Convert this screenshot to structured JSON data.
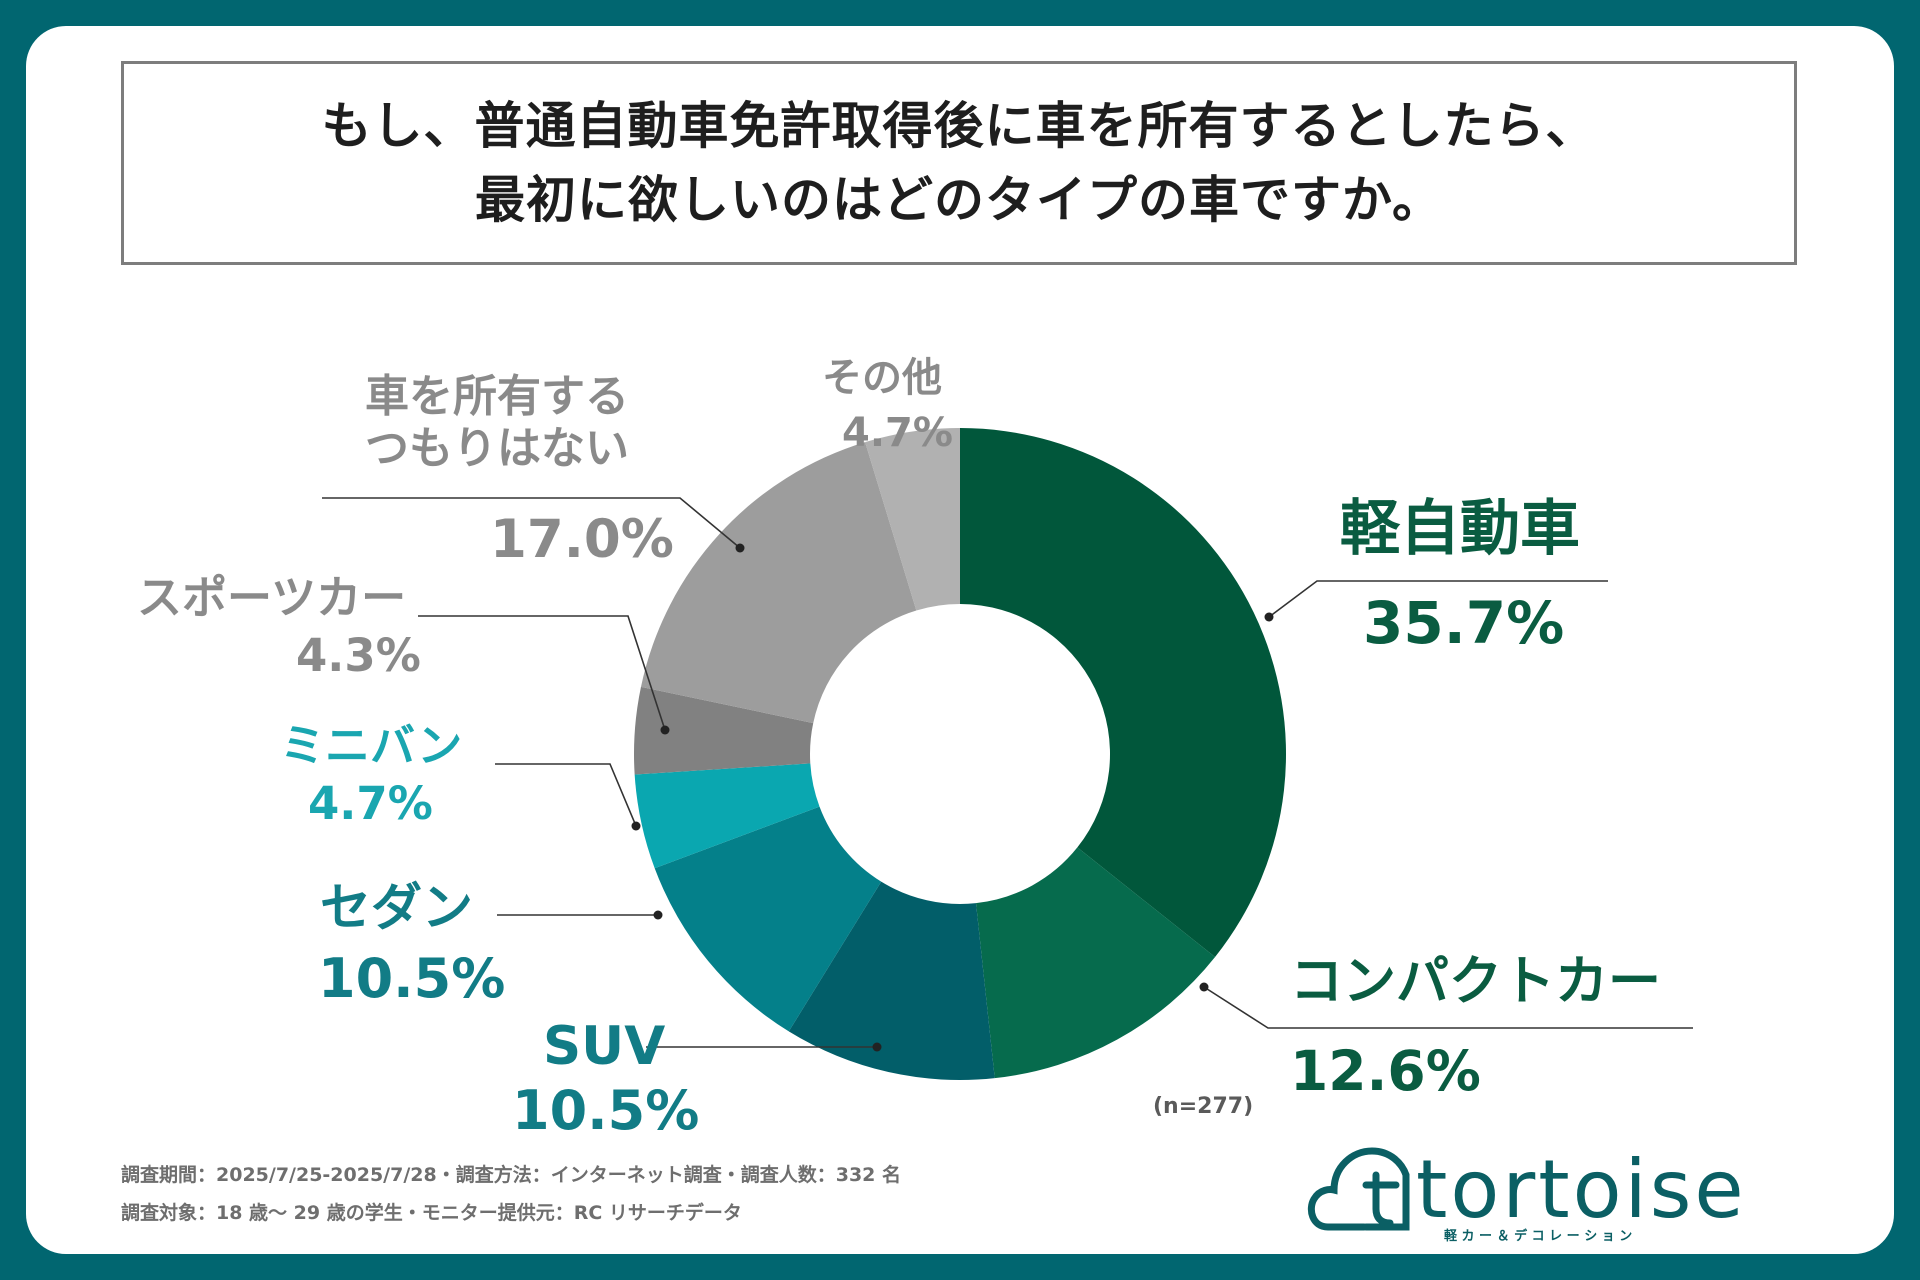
{
  "title": {
    "line1": "もし、普通自動車免許取得後に車を所有するとしたら、",
    "line2": "最初に欲しいのはどのタイプの車ですか。"
  },
  "chart_data": {
    "type": "pie",
    "variant": "donut",
    "title": "もし、普通自動車免許取得後に車を所有するとしたら、最初に欲しいのはどのタイプの車ですか。",
    "unit": "%",
    "sample_note": "(n=277)",
    "slices": [
      {
        "key": "kei",
        "label": "軽自動車",
        "value": 35.7,
        "value_label": "35.7%",
        "color": "#01573b"
      },
      {
        "key": "compact",
        "label": "コンパクトカー",
        "value": 12.6,
        "value_label": "12.6%",
        "color": "#066b4d"
      },
      {
        "key": "suv",
        "label": "SUV",
        "value": 10.5,
        "value_label": "10.5%",
        "color": "#025e69"
      },
      {
        "key": "sedan",
        "label": "セダン",
        "value": 10.5,
        "value_label": "10.5%",
        "color": "#04808a"
      },
      {
        "key": "minivan",
        "label": "ミニバン",
        "value": 4.7,
        "value_label": "4.7%",
        "color": "#0aa7b0"
      },
      {
        "key": "sports",
        "label": "スポーツカー",
        "value": 4.3,
        "value_label": "4.3%",
        "color": "#818181"
      },
      {
        "key": "none",
        "label_line1": "車を所有する",
        "label_line2": "つもりはない",
        "value": 17.0,
        "value_label": "17.0%",
        "color": "#9d9d9d"
      },
      {
        "key": "other",
        "label": "その他",
        "value": 4.7,
        "value_label": "4.7%",
        "color": "#b1b1b1"
      }
    ]
  },
  "footer": {
    "line1": "調査期間：2025/7/25-2025/7/28・調査方法：インターネット調査・調査人数：332 名",
    "line2": "調査対象：18 歳～ 29 歳の学生・モニター提供元：RC リサーチデータ"
  },
  "logo": {
    "brand": "tortoise",
    "tagline": "軽 カ ー ＆ デ コ レ ー シ ョ ン",
    "color": "#0b5f64"
  }
}
